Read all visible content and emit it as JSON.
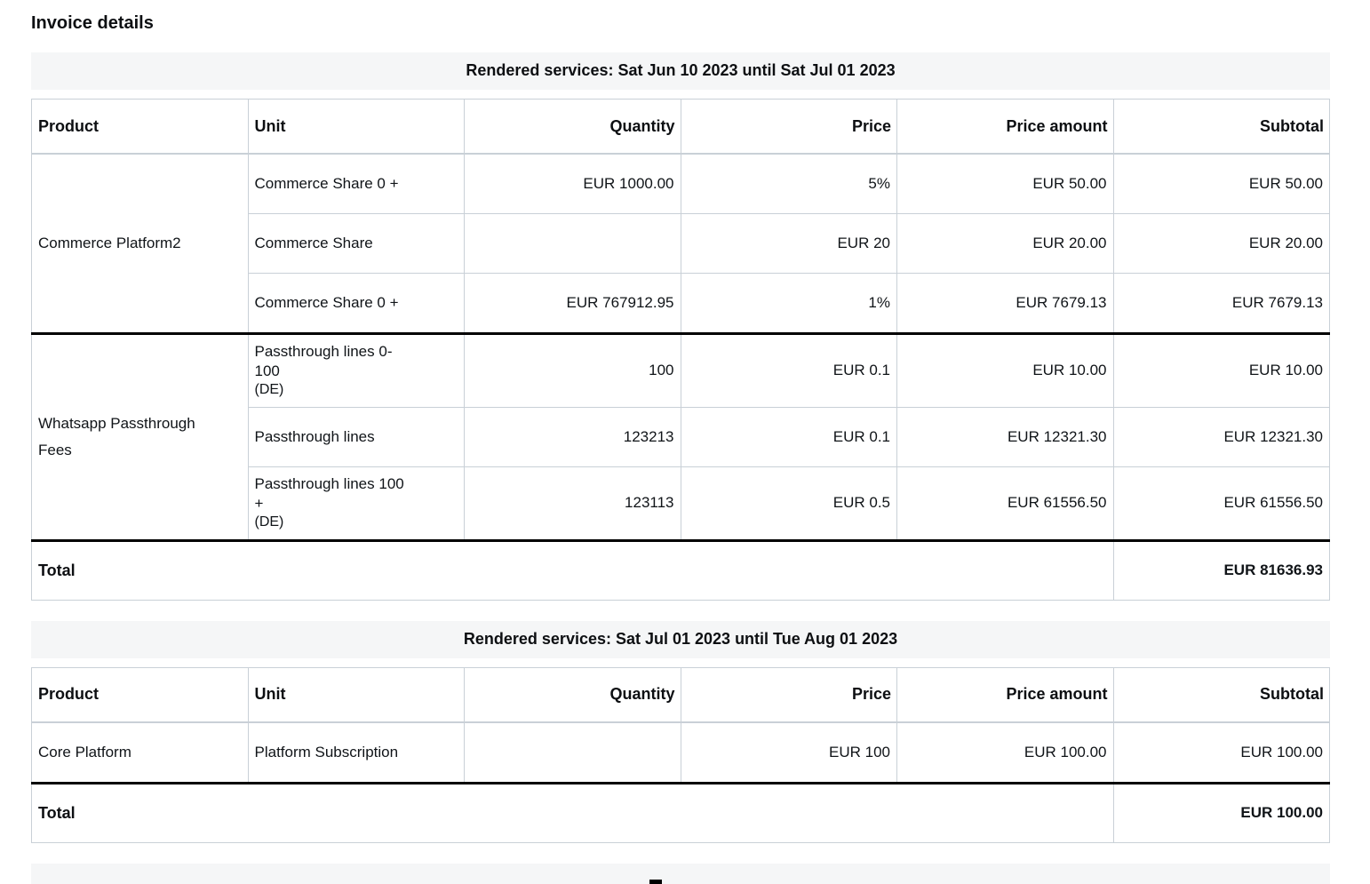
{
  "page": {
    "title": "Invoice details"
  },
  "colors": {
    "caption_band_bg": "#f5f6f7",
    "cell_border": "#c9d0d7",
    "group_divider": "#000000",
    "text": "#101418"
  },
  "columns": [
    "Product",
    "Unit",
    "Quantity",
    "Price",
    "Price amount",
    "Subtotal"
  ],
  "sections": [
    {
      "caption": "Rendered services: Sat Jun 10 2023 until Sat Jul 01 2023",
      "groups": [
        {
          "product": "Commerce Platform2",
          "rows": [
            {
              "unit": "Commerce Share 0 +",
              "unit_note": "",
              "quantity": "EUR 1000.00",
              "price": "5%",
              "price_amount": "EUR 50.00",
              "subtotal": "EUR 50.00"
            },
            {
              "unit": "Commerce Share",
              "unit_note": "",
              "quantity": "",
              "price": "EUR 20",
              "price_amount": "EUR 20.00",
              "subtotal": "EUR 20.00"
            },
            {
              "unit": "Commerce Share 0 +",
              "unit_note": "",
              "quantity": "EUR 767912.95",
              "price": "1%",
              "price_amount": "EUR 7679.13",
              "subtotal": "EUR 7679.13"
            }
          ]
        },
        {
          "product": "Whatsapp Passthrough Fees",
          "rows": [
            {
              "unit": "Passthrough lines 0-100",
              "unit_note": "(DE)",
              "quantity": "100",
              "price": "EUR 0.1",
              "price_amount": "EUR 10.00",
              "subtotal": "EUR 10.00"
            },
            {
              "unit": "Passthrough lines",
              "unit_note": "",
              "quantity": "123213",
              "price": "EUR 0.1",
              "price_amount": "EUR 12321.30",
              "subtotal": "EUR 12321.30"
            },
            {
              "unit": "Passthrough lines 100 +",
              "unit_note": "(DE)",
              "quantity": "123113",
              "price": "EUR 0.5",
              "price_amount": "EUR 61556.50",
              "subtotal": "EUR 61556.50"
            }
          ]
        }
      ],
      "total_label": "Total",
      "total_value": "EUR 81636.93"
    },
    {
      "caption": "Rendered services: Sat Jul 01 2023 until Tue Aug 01 2023",
      "groups": [
        {
          "product": "Core Platform",
          "rows": [
            {
              "unit": "Platform Subscription",
              "unit_note": "",
              "quantity": "",
              "price": "EUR 100",
              "price_amount": "EUR 100.00",
              "subtotal": "EUR 100.00"
            }
          ]
        }
      ],
      "total_label": "Total",
      "total_value": "EUR 100.00"
    }
  ],
  "partial_next_section_visible": true
}
